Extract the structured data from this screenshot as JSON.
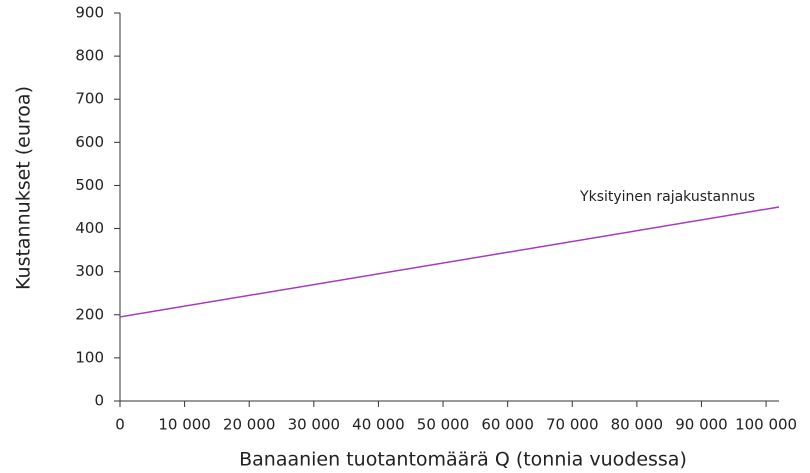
{
  "chart_data": {
    "type": "line",
    "x_label": "Banaanien tuotantomäärä Q (tonnia vuodessa)",
    "y_label": "Kustannukset (euroa)",
    "series": [
      {
        "name": "Yksityinen rajakustannus",
        "color": "#a33dbb",
        "x": [
          0,
          102000
        ],
        "values": [
          195,
          450
        ]
      }
    ],
    "xlim": [
      0,
      102000
    ],
    "xticks": [
      0,
      {
        "value": 10000,
        "label": "10 000"
      },
      {
        "value": 20000,
        "label": "20 000"
      },
      {
        "value": 30000,
        "label": "30 000"
      },
      {
        "value": 40000,
        "label": "40 000"
      },
      {
        "value": 50000,
        "label": "50 000"
      },
      {
        "value": 60000,
        "label": "60 000"
      },
      {
        "value": 70000,
        "label": "70 000"
      },
      {
        "value": 80000,
        "label": "80 000"
      },
      {
        "value": 90000,
        "label": "90 000"
      },
      {
        "value": 100000,
        "label": "100 000"
      }
    ],
    "ylim": [
      0,
      900
    ],
    "yticks": [
      0,
      100,
      200,
      300,
      400,
      500,
      600,
      700,
      800,
      900
    ],
    "grid": false
  }
}
